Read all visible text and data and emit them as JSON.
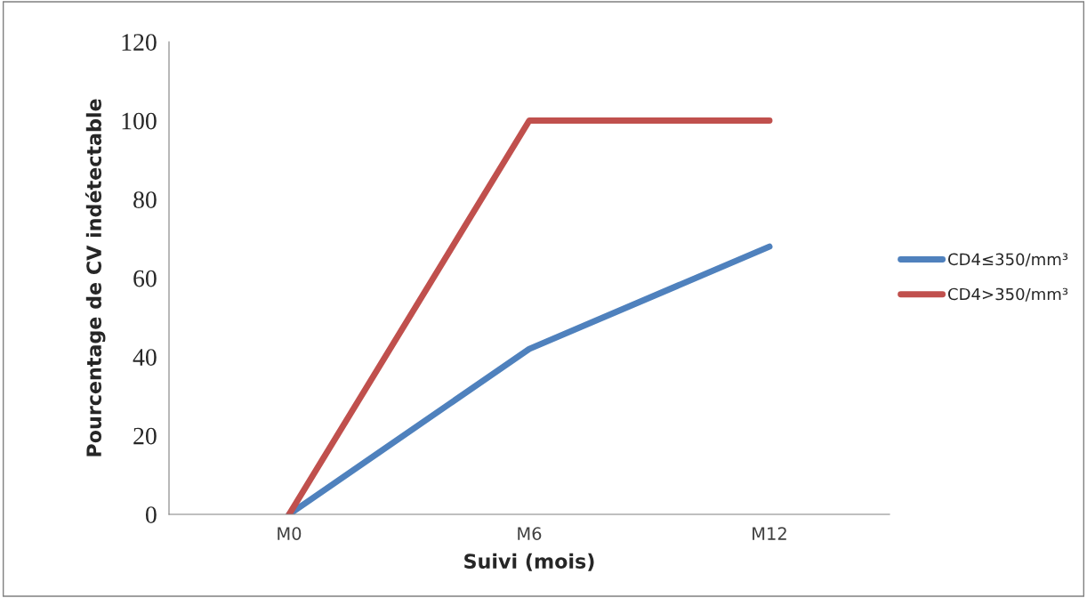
{
  "chart_data": {
    "type": "line",
    "xlabel": "Suivi (mois)",
    "ylabel": "Pourcentage de CV indétectable",
    "categories": [
      "M0",
      "M6",
      "M12"
    ],
    "series": [
      {
        "name": "CD4≤350/mm³",
        "color": "#4f81bd",
        "values": [
          0,
          42,
          68
        ]
      },
      {
        "name": "CD4>350/mm³",
        "color": "#c0504d",
        "values": [
          0,
          100,
          100
        ]
      }
    ],
    "ylim": [
      0,
      120
    ],
    "yticks": [
      0,
      20,
      40,
      60,
      80,
      100,
      120
    ],
    "grid": false,
    "legend": "right",
    "marker": "none",
    "line_style": "solid"
  }
}
